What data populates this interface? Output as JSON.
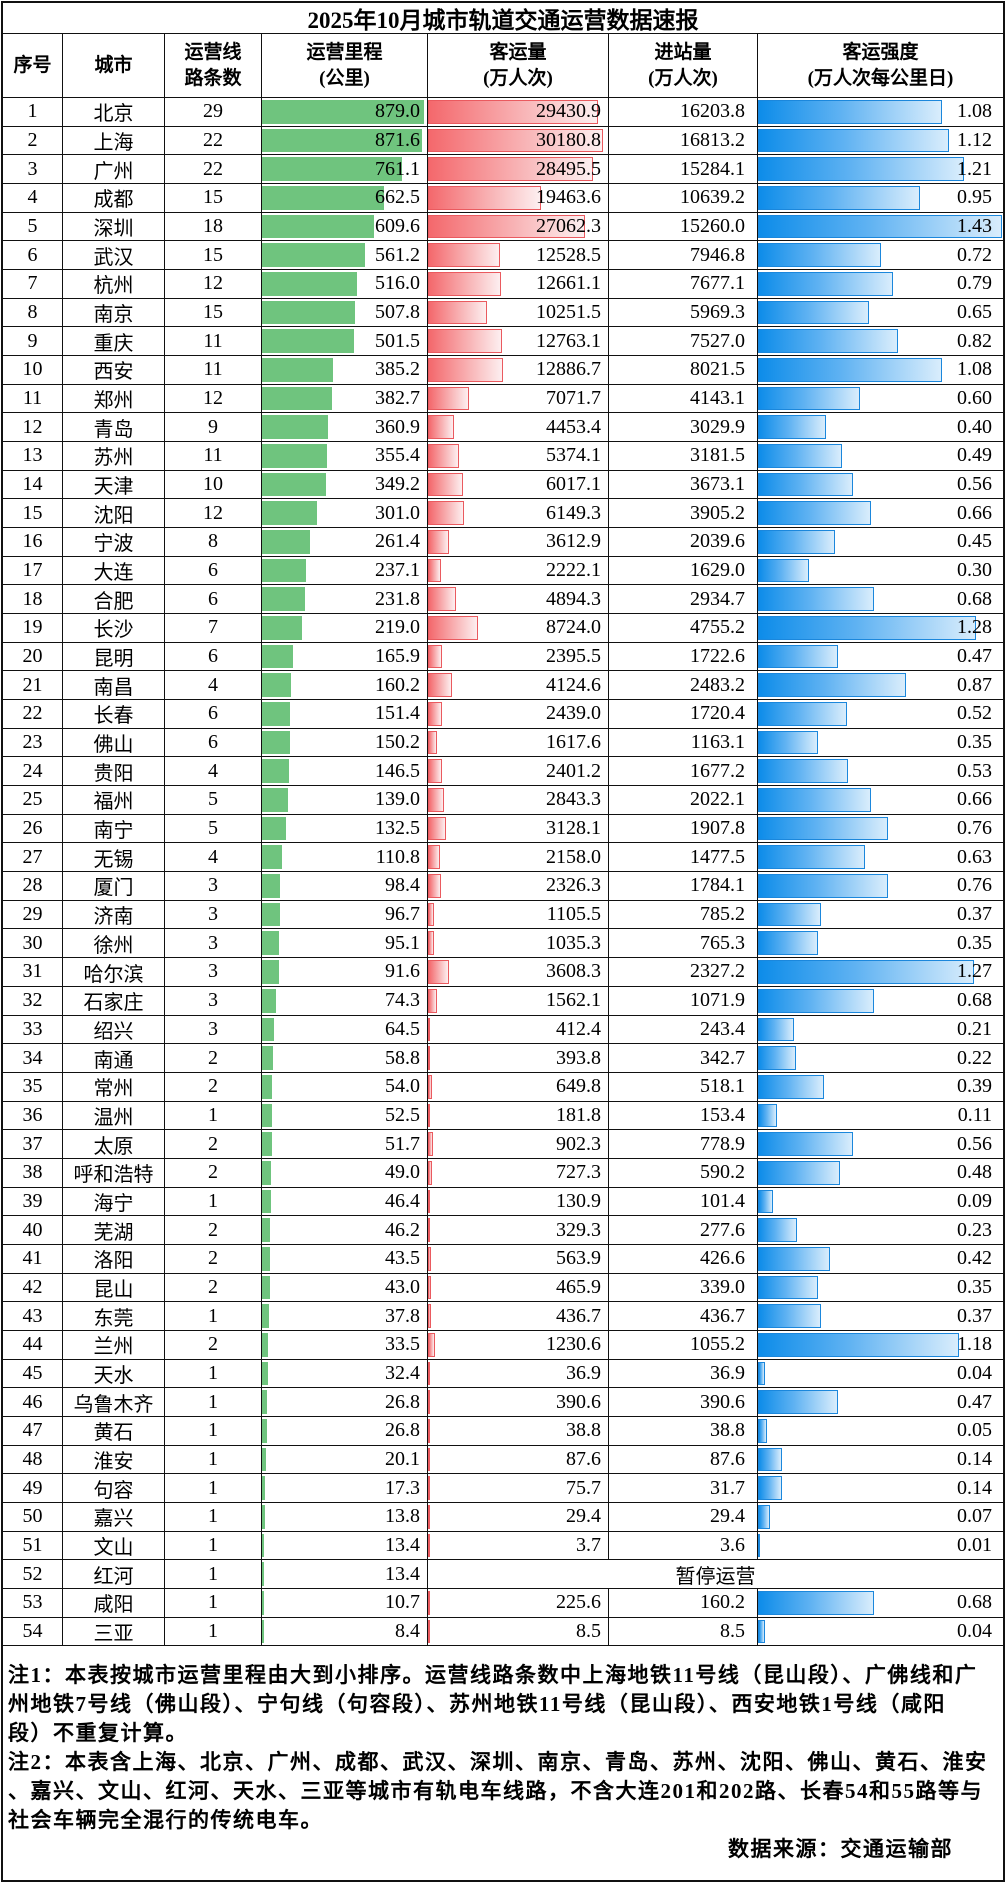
{
  "title": "2025年10月城市轨道交通运营数据速报",
  "columns": {
    "seq": "序号",
    "city": "城市",
    "lines": "运营线\n路条数",
    "mileage": "运营里程\n(公里)",
    "passengers": "客运量\n(万人次)",
    "entries": "进站量\n(万人次)",
    "intensity": "客运强度\n(万人次每公里日)"
  },
  "suspended_label": "暂停运营",
  "chart_data": {
    "type": "table",
    "title": "2025年10月城市轨道交通运营数据速报",
    "columns": [
      "序号",
      "城市",
      "运营线路条数",
      "运营里程(公里)",
      "客运量(万人次)",
      "进站量(万人次)",
      "客运强度(万人次每公里日)"
    ],
    "bar_styles": {
      "运营里程(公里)": "green solid data bar",
      "客运量(万人次)": "red gradient data bar",
      "客运强度(万人次每公里日)": "blue gradient data bar"
    },
    "max": {
      "mileage": 879.0,
      "passengers": 30180.8,
      "intensity": 1.43
    },
    "rows": [
      [
        1,
        "北京",
        29,
        879.0,
        29430.9,
        16203.8,
        1.08
      ],
      [
        2,
        "上海",
        22,
        871.6,
        30180.8,
        16813.2,
        1.12
      ],
      [
        3,
        "广州",
        22,
        761.1,
        28495.5,
        15284.1,
        1.21
      ],
      [
        4,
        "成都",
        15,
        662.5,
        19463.6,
        10639.2,
        0.95
      ],
      [
        5,
        "深圳",
        18,
        609.6,
        27062.3,
        15260.0,
        1.43
      ],
      [
        6,
        "武汉",
        15,
        561.2,
        12528.5,
        7946.8,
        0.72
      ],
      [
        7,
        "杭州",
        12,
        516.0,
        12661.1,
        7677.1,
        0.79
      ],
      [
        8,
        "南京",
        15,
        507.8,
        10251.5,
        5969.3,
        0.65
      ],
      [
        9,
        "重庆",
        11,
        501.5,
        12763.1,
        7527.0,
        0.82
      ],
      [
        10,
        "西安",
        11,
        385.2,
        12886.7,
        8021.5,
        1.08
      ],
      [
        11,
        "郑州",
        12,
        382.7,
        7071.7,
        4143.1,
        0.6
      ],
      [
        12,
        "青岛",
        9,
        360.9,
        4453.4,
        3029.9,
        0.4
      ],
      [
        13,
        "苏州",
        11,
        355.4,
        5374.1,
        3181.5,
        0.49
      ],
      [
        14,
        "天津",
        10,
        349.2,
        6017.1,
        3673.1,
        0.56
      ],
      [
        15,
        "沈阳",
        12,
        301.0,
        6149.3,
        3905.2,
        0.66
      ],
      [
        16,
        "宁波",
        8,
        261.4,
        3612.9,
        2039.6,
        0.45
      ],
      [
        17,
        "大连",
        6,
        237.1,
        2222.1,
        1629.0,
        0.3
      ],
      [
        18,
        "合肥",
        6,
        231.8,
        4894.3,
        2934.7,
        0.68
      ],
      [
        19,
        "长沙",
        7,
        219.0,
        8724.0,
        4755.2,
        1.28
      ],
      [
        20,
        "昆明",
        6,
        165.9,
        2395.5,
        1722.6,
        0.47
      ],
      [
        21,
        "南昌",
        4,
        160.2,
        4124.6,
        2483.2,
        0.87
      ],
      [
        22,
        "长春",
        6,
        151.4,
        2439.0,
        1720.4,
        0.52
      ],
      [
        23,
        "佛山",
        6,
        150.2,
        1617.6,
        1163.1,
        0.35
      ],
      [
        24,
        "贵阳",
        4,
        146.5,
        2401.2,
        1677.2,
        0.53
      ],
      [
        25,
        "福州",
        5,
        139.0,
        2843.3,
        2022.1,
        0.66
      ],
      [
        26,
        "南宁",
        5,
        132.5,
        3128.1,
        1907.8,
        0.76
      ],
      [
        27,
        "无锡",
        4,
        110.8,
        2158.0,
        1477.5,
        0.63
      ],
      [
        28,
        "厦门",
        3,
        98.4,
        2326.3,
        1784.1,
        0.76
      ],
      [
        29,
        "济南",
        3,
        96.7,
        1105.5,
        785.2,
        0.37
      ],
      [
        30,
        "徐州",
        3,
        95.1,
        1035.3,
        765.3,
        0.35
      ],
      [
        31,
        "哈尔滨",
        3,
        91.6,
        3608.3,
        2327.2,
        1.27
      ],
      [
        32,
        "石家庄",
        3,
        74.3,
        1562.1,
        1071.9,
        0.68
      ],
      [
        33,
        "绍兴",
        3,
        64.5,
        412.4,
        243.4,
        0.21
      ],
      [
        34,
        "南通",
        2,
        58.8,
        393.8,
        342.7,
        0.22
      ],
      [
        35,
        "常州",
        2,
        54.0,
        649.8,
        518.1,
        0.39
      ],
      [
        36,
        "温州",
        1,
        52.5,
        181.8,
        153.4,
        0.11
      ],
      [
        37,
        "太原",
        2,
        51.7,
        902.3,
        778.9,
        0.56
      ],
      [
        38,
        "呼和浩特",
        2,
        49.0,
        727.3,
        590.2,
        0.48
      ],
      [
        39,
        "海宁",
        1,
        46.4,
        130.9,
        101.4,
        0.09
      ],
      [
        40,
        "芜湖",
        2,
        46.2,
        329.3,
        277.6,
        0.23
      ],
      [
        41,
        "洛阳",
        2,
        43.5,
        563.9,
        426.6,
        0.42
      ],
      [
        42,
        "昆山",
        2,
        43.0,
        465.9,
        339.0,
        0.35
      ],
      [
        43,
        "东莞",
        1,
        37.8,
        436.7,
        436.7,
        0.37
      ],
      [
        44,
        "兰州",
        2,
        33.5,
        1230.6,
        1055.2,
        1.18
      ],
      [
        45,
        "天水",
        1,
        32.4,
        36.9,
        36.9,
        0.04
      ],
      [
        46,
        "乌鲁木齐",
        1,
        26.8,
        390.6,
        390.6,
        0.47
      ],
      [
        47,
        "黄石",
        1,
        26.8,
        38.8,
        38.8,
        0.05
      ],
      [
        48,
        "淮安",
        1,
        20.1,
        87.6,
        87.6,
        0.14
      ],
      [
        49,
        "句容",
        1,
        17.3,
        75.7,
        31.7,
        0.14
      ],
      [
        50,
        "嘉兴",
        1,
        13.8,
        29.4,
        29.4,
        0.07
      ],
      [
        51,
        "文山",
        1,
        13.4,
        3.7,
        3.6,
        0.01
      ],
      [
        52,
        "红河",
        1,
        13.4,
        null,
        null,
        null
      ],
      [
        53,
        "咸阳",
        1,
        10.7,
        225.6,
        160.2,
        0.68
      ],
      [
        54,
        "三亚",
        1,
        8.4,
        8.5,
        8.5,
        0.04
      ]
    ]
  },
  "notes": {
    "note1": "注1：本表按城市运营里程由大到小排序。运营线路条数中上海地铁11号线（昆山段）、广佛线和广\n州地铁7号线（佛山段）、宁句线（句容段）、苏州地铁11号线（昆山段）、西安地铁1号线（咸阳\n段）不重复计算。",
    "note2": "注2：本表含上海、北京、广州、成都、武汉、深圳、南京、青岛、苏州、沈阳、佛山、黄石、淮安\n、嘉兴、文山、红河、天水、三亚等城市有轨电车线路，不含大连201和202路、长春54和55路等与\n社会车辆完全混行的传统电车。"
  },
  "source": "数据来源：交通运输部",
  "colors": {
    "bar_green": "#6fc47e",
    "bar_red_start": "#f4686c",
    "bar_red_end": "#fdeff0",
    "bar_red_border": "#ea5a5f",
    "bar_blue_start": "#0d8ce9",
    "bar_blue_end": "#d9edfc",
    "bar_blue_border": "#1b87dc",
    "grid_border": "#111111"
  }
}
